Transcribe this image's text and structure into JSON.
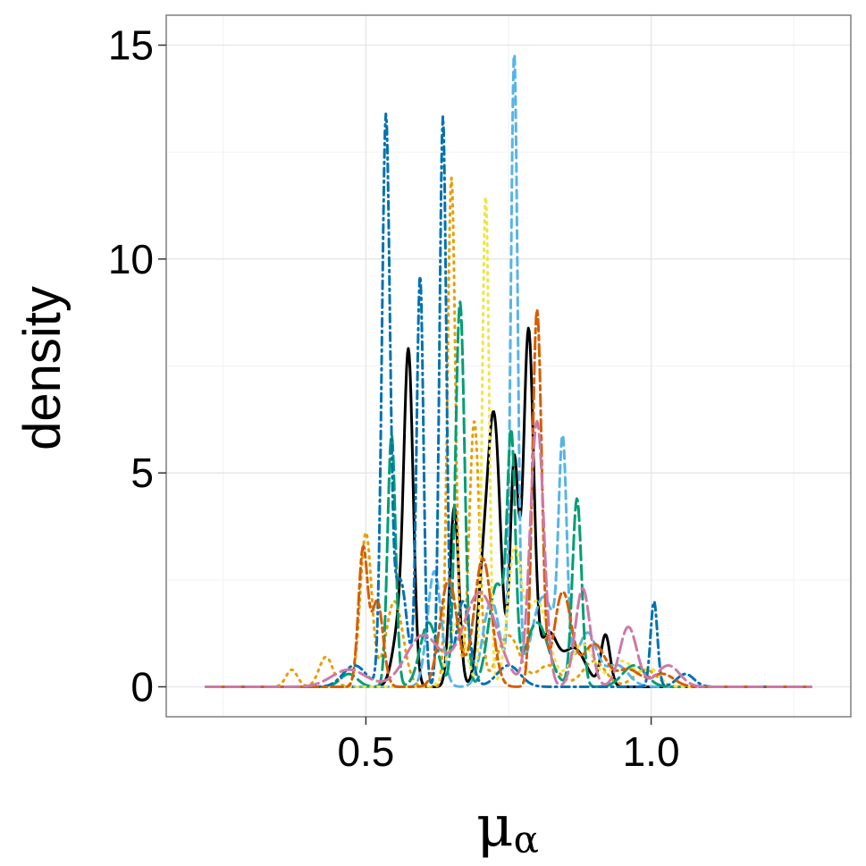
{
  "chart_data": {
    "type": "line",
    "subtype": "density",
    "title": "",
    "xlabel": "μ",
    "xlabel_subscript": "α",
    "ylabel": "density",
    "xlim": [
      0.15,
      1.35
    ],
    "ylim": [
      -0.7,
      15.7
    ],
    "x_ticks": [
      0.5,
      1.0
    ],
    "x_tick_labels": [
      "0.5",
      "1.0"
    ],
    "y_ticks": [
      0,
      5,
      10,
      15
    ],
    "y_tick_labels": [
      "0",
      "5",
      "10",
      "15"
    ],
    "grid": true,
    "legend": "none",
    "series": [
      {
        "color": "#000000",
        "dash": "solid",
        "peaks": [
          [
            0.575,
            7.2,
            0.008
          ],
          [
            0.655,
            4.2,
            0.008
          ],
          [
            0.725,
            6.1,
            0.011
          ],
          [
            0.76,
            5.2,
            0.007
          ],
          [
            0.785,
            8.3,
            0.009
          ],
          [
            0.82,
            1.2,
            0.015
          ],
          [
            0.865,
            0.9,
            0.02
          ],
          [
            0.92,
            1.2,
            0.008
          ],
          [
            0.705,
            2.2,
            0.01
          ],
          [
            0.56,
            1.5,
            0.012
          ]
        ]
      },
      {
        "color": "#E69F00",
        "dash": "dotted",
        "peaks": [
          [
            0.65,
            11.9,
            0.007
          ],
          [
            0.37,
            0.4,
            0.01
          ],
          [
            0.43,
            0.7,
            0.012
          ],
          [
            0.5,
            3.6,
            0.01
          ],
          [
            0.55,
            2.0,
            0.015
          ],
          [
            0.69,
            6.2,
            0.009
          ],
          [
            0.75,
            1.2,
            0.02
          ],
          [
            0.82,
            0.5,
            0.02
          ],
          [
            0.9,
            0.6,
            0.02
          ],
          [
            0.99,
            0.4,
            0.02
          ]
        ]
      },
      {
        "color": "#56B4E9",
        "dash": "dashed",
        "peaks": [
          [
            0.76,
            14.7,
            0.006
          ],
          [
            0.62,
            2.7,
            0.012
          ],
          [
            0.72,
            2.0,
            0.015
          ],
          [
            0.81,
            2.0,
            0.02
          ],
          [
            0.845,
            5.1,
            0.007
          ],
          [
            0.89,
            1.0,
            0.015
          ],
          [
            0.94,
            0.5,
            0.02
          ],
          [
            0.86,
            0.4,
            0.03
          ]
        ]
      },
      {
        "color": "#009E73",
        "dash": "longdash",
        "peaks": [
          [
            0.545,
            5.9,
            0.007
          ],
          [
            0.665,
            9.0,
            0.008
          ],
          [
            0.73,
            2.4,
            0.015
          ],
          [
            0.755,
            5.3,
            0.007
          ],
          [
            0.87,
            4.4,
            0.008
          ],
          [
            0.61,
            1.5,
            0.015
          ],
          [
            0.8,
            1.5,
            0.02
          ],
          [
            0.97,
            0.5,
            0.02
          ],
          [
            0.47,
            0.3,
            0.015
          ]
        ]
      },
      {
        "color": "#F0E442",
        "dash": "dotted",
        "peaks": [
          [
            0.71,
            11.5,
            0.006
          ],
          [
            0.76,
            3.0,
            0.012
          ],
          [
            0.8,
            2.0,
            0.02
          ],
          [
            0.88,
            1.0,
            0.02
          ],
          [
            0.66,
            1.5,
            0.015
          ],
          [
            0.95,
            0.6,
            0.02
          ],
          [
            1.0,
            0.4,
            0.015
          ]
        ]
      },
      {
        "color": "#0072B2",
        "dash": "dotdash",
        "peaks": [
          [
            0.535,
            13.1,
            0.007
          ],
          [
            0.595,
            9.6,
            0.006
          ],
          [
            0.635,
            13.3,
            0.006
          ],
          [
            0.56,
            2.5,
            0.012
          ],
          [
            0.67,
            2.0,
            0.012
          ],
          [
            0.75,
            0.5,
            0.02
          ],
          [
            1.005,
            2.0,
            0.006
          ],
          [
            1.06,
            0.3,
            0.015
          ],
          [
            0.48,
            0.5,
            0.02
          ]
        ]
      },
      {
        "color": "#D55E00",
        "dash": "twodash",
        "peaks": [
          [
            0.495,
            3.2,
            0.008
          ],
          [
            0.52,
            2.0,
            0.01
          ],
          [
            0.645,
            2.5,
            0.015
          ],
          [
            0.705,
            3.0,
            0.015
          ],
          [
            0.8,
            8.8,
            0.008
          ],
          [
            0.845,
            2.2,
            0.015
          ],
          [
            0.9,
            1.0,
            0.02
          ],
          [
            0.96,
            0.4,
            0.02
          ],
          [
            1.02,
            0.3,
            0.02
          ]
        ]
      },
      {
        "color": "#CC79A7",
        "dash": "longdash",
        "peaks": [
          [
            0.8,
            6.2,
            0.012
          ],
          [
            0.7,
            2.2,
            0.03
          ],
          [
            0.88,
            2.3,
            0.013
          ],
          [
            0.96,
            1.4,
            0.015
          ],
          [
            0.6,
            1.2,
            0.03
          ],
          [
            1.03,
            0.5,
            0.02
          ],
          [
            0.47,
            0.4,
            0.03
          ]
        ]
      }
    ]
  }
}
